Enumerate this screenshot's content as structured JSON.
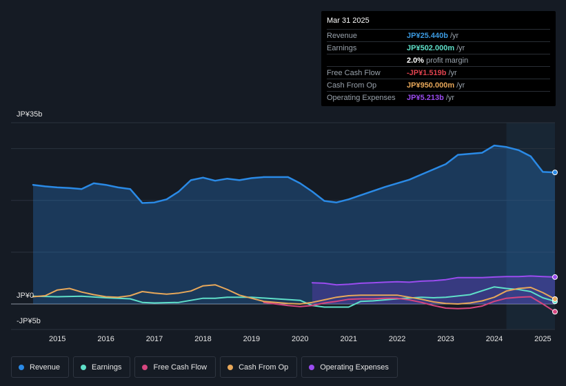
{
  "tooltip": {
    "date": "Mar 31 2025",
    "rows": [
      {
        "label": "Revenue",
        "value": "JP¥25.440b",
        "unit": "/yr",
        "color": "#3b9ae1"
      },
      {
        "label": "Earnings",
        "value": "JP¥502.000m",
        "unit": "/yr",
        "color": "#5fe0c9"
      },
      {
        "label": "",
        "value": "2.0%",
        "unit": "profit margin",
        "color": "#ffffff"
      },
      {
        "label": "Free Cash Flow",
        "value": "-JP¥1.519b",
        "unit": "/yr",
        "color": "#e0424e"
      },
      {
        "label": "Cash From Op",
        "value": "JP¥950.000m",
        "unit": "/yr",
        "color": "#e8a85a"
      },
      {
        "label": "Operating Expenses",
        "value": "JP¥5.213b",
        "unit": "/yr",
        "color": "#9b4cf0"
      }
    ]
  },
  "legend": [
    {
      "label": "Revenue",
      "color": "#2a8ae6"
    },
    {
      "label": "Earnings",
      "color": "#5fe0c9"
    },
    {
      "label": "Free Cash Flow",
      "color": "#d6467f"
    },
    {
      "label": "Cash From Op",
      "color": "#e8a85a"
    },
    {
      "label": "Operating Expenses",
      "color": "#9b4cf0"
    }
  ],
  "chart_data": {
    "type": "area",
    "title": "",
    "xlabel": "",
    "ylabel": "",
    "y_tick_labels": [
      "JP¥35b",
      "JP¥0",
      "-JP¥5b"
    ],
    "x_tick_labels": [
      "2015",
      "2016",
      "2017",
      "2018",
      "2019",
      "2020",
      "2021",
      "2022",
      "2023",
      "2024",
      "2025"
    ],
    "xlim": [
      2014.5,
      2025.25
    ],
    "ylim": [
      -5,
      35
    ],
    "forecast_start": 2024.25,
    "series": [
      {
        "name": "Revenue",
        "color": "#2a8ae6",
        "x": [
          2014.5,
          2014.75,
          2015.0,
          2015.25,
          2015.5,
          2015.75,
          2016.0,
          2016.25,
          2016.5,
          2016.75,
          2017.0,
          2017.25,
          2017.5,
          2017.75,
          2018.0,
          2018.25,
          2018.5,
          2018.75,
          2019.0,
          2019.25,
          2019.5,
          2019.75,
          2020.0,
          2020.25,
          2020.5,
          2020.75,
          2021.0,
          2021.25,
          2021.5,
          2021.75,
          2022.0,
          2022.25,
          2022.5,
          2022.75,
          2023.0,
          2023.25,
          2023.5,
          2023.75,
          2024.0,
          2024.25,
          2024.5,
          2024.75,
          2025.0,
          2025.25
        ],
        "values": [
          23.0,
          22.7,
          22.5,
          22.4,
          22.2,
          23.3,
          23.0,
          22.5,
          22.2,
          19.5,
          19.6,
          20.2,
          21.7,
          23.9,
          24.4,
          23.8,
          24.2,
          23.9,
          24.3,
          24.5,
          24.5,
          24.5,
          23.3,
          21.7,
          19.9,
          19.6,
          20.2,
          21.0,
          21.8,
          22.6,
          23.3,
          24.0,
          25.0,
          26.0,
          27.0,
          28.8,
          29.0,
          29.2,
          30.6,
          30.3,
          29.7,
          28.5,
          25.5,
          25.4
        ]
      },
      {
        "name": "Earnings",
        "color": "#5fe0c9",
        "x": [
          2014.5,
          2015.0,
          2015.5,
          2016.0,
          2016.5,
          2016.75,
          2017.0,
          2017.5,
          2018.0,
          2018.25,
          2018.5,
          2019.0,
          2019.5,
          2020.0,
          2020.25,
          2020.5,
          2020.75,
          2021.0,
          2021.25,
          2021.5,
          2022.0,
          2022.5,
          2022.75,
          2023.0,
          2023.5,
          2024.0,
          2024.25,
          2024.5,
          2024.75,
          2025.0,
          2025.25
        ],
        "values": [
          1.5,
          1.4,
          1.5,
          1.2,
          1.0,
          0.3,
          0.2,
          0.3,
          1.1,
          1.1,
          1.3,
          1.3,
          1.0,
          0.7,
          -0.3,
          -0.6,
          -0.6,
          -0.6,
          0.5,
          0.6,
          1.0,
          1.3,
          1.2,
          1.3,
          1.8,
          3.3,
          3.0,
          2.8,
          2.4,
          1.2,
          0.5
        ]
      },
      {
        "name": "Free Cash Flow",
        "color": "#d6467f",
        "x": [
          2019.25,
          2019.5,
          2019.75,
          2020.0,
          2020.25,
          2020.5,
          2020.75,
          2021.0,
          2021.25,
          2021.5,
          2021.75,
          2022.0,
          2022.25,
          2022.5,
          2022.75,
          2023.0,
          2023.25,
          2023.5,
          2023.75,
          2024.0,
          2024.25,
          2024.5,
          2024.75,
          2025.0,
          2025.25
        ],
        "values": [
          0.3,
          0.0,
          -0.3,
          -0.5,
          -0.3,
          0.2,
          0.5,
          0.9,
          1.0,
          1.0,
          1.1,
          1.1,
          0.8,
          0.3,
          -0.3,
          -0.8,
          -0.9,
          -0.8,
          -0.4,
          0.5,
          1.1,
          1.3,
          1.4,
          0.0,
          -1.5
        ]
      },
      {
        "name": "Cash From Op",
        "color": "#e8a85a",
        "x": [
          2014.5,
          2014.75,
          2015.0,
          2015.25,
          2015.5,
          2015.75,
          2016.0,
          2016.25,
          2016.5,
          2016.75,
          2017.0,
          2017.25,
          2017.5,
          2017.75,
          2018.0,
          2018.25,
          2018.5,
          2018.75,
          2019.0,
          2019.25,
          2019.5,
          2019.75,
          2020.0,
          2020.25,
          2020.5,
          2020.75,
          2021.0,
          2021.25,
          2021.5,
          2021.75,
          2022.0,
          2022.25,
          2022.5,
          2022.75,
          2023.0,
          2023.25,
          2023.5,
          2023.75,
          2024.0,
          2024.25,
          2024.5,
          2024.75,
          2025.0,
          2025.25
        ],
        "values": [
          1.4,
          1.6,
          2.7,
          3.0,
          2.3,
          1.8,
          1.4,
          1.3,
          1.6,
          2.4,
          2.1,
          1.9,
          2.1,
          2.5,
          3.5,
          3.7,
          2.8,
          1.7,
          1.1,
          0.5,
          0.3,
          0.1,
          0.0,
          0.3,
          0.8,
          1.3,
          1.6,
          1.7,
          1.7,
          1.7,
          1.7,
          1.3,
          0.9,
          0.4,
          0.1,
          0.0,
          0.2,
          0.6,
          1.3,
          2.5,
          3.0,
          3.2,
          2.2,
          0.95
        ]
      },
      {
        "name": "Operating Expenses",
        "color": "#9b4cf0",
        "x": [
          2020.25,
          2020.5,
          2020.75,
          2021.0,
          2021.25,
          2021.5,
          2021.75,
          2022.0,
          2022.25,
          2022.5,
          2022.75,
          2023.0,
          2023.25,
          2023.5,
          2023.75,
          2024.0,
          2024.25,
          2024.5,
          2024.75,
          2025.0,
          2025.25
        ],
        "values": [
          4.1,
          4.0,
          3.7,
          3.8,
          4.0,
          4.1,
          4.2,
          4.3,
          4.2,
          4.4,
          4.5,
          4.7,
          5.1,
          5.1,
          5.1,
          5.2,
          5.3,
          5.3,
          5.4,
          5.3,
          5.2
        ]
      }
    ]
  }
}
